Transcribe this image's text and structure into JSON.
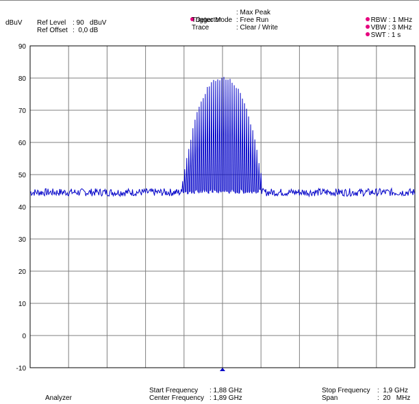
{
  "header": {
    "unit": "dBuV",
    "ref_level_label": "Ref Level",
    "ref_level_value": ": 90   dBuV",
    "ref_offset_label": "Ref Offset",
    "ref_offset_value": ":  0,0 dB",
    "detector_label": "Detector",
    "detector_value": ": Max Peak",
    "trigger_label": "Trigger Mode",
    "trigger_value": ": Free Run",
    "trace_label": "Trace",
    "trace_value": ": Clear / Write",
    "rbw": "RBW : 1 MHz",
    "vbw": "VBW : 3 MHz",
    "swt": "SWT : 1 s",
    "marker_color": "#e6007e"
  },
  "footer": {
    "app_label": "Analyzer",
    "start_label": "Start Frequency",
    "start_value": ": 1,88 GHz",
    "center_label": "Center Frequency",
    "center_value": ": 1,89 GHz",
    "stop_label": "Stop Frequency",
    "stop_value": ":  1,9 GHz",
    "span_label": "Span",
    "span_value": ":  20   MHz"
  },
  "chart_data": {
    "type": "line",
    "x_unit": "GHz",
    "y_unit": "dBuV",
    "xlim": [
      1.88,
      1.9
    ],
    "ylim": [
      -10,
      90
    ],
    "yticks": [
      "90",
      "80",
      "70",
      "60",
      "50",
      "40",
      "30",
      "20",
      "10",
      "0",
      "-10"
    ],
    "grid": true,
    "trace_color": "#0000c8",
    "noise_floor_dbuv": 44.5,
    "signal_band_ghz": [
      1.8879,
      1.8921
    ],
    "signal_peak_dbuv": 80.5,
    "signal_min_dbuv": 44,
    "center_marker_ghz": 1.89
  }
}
